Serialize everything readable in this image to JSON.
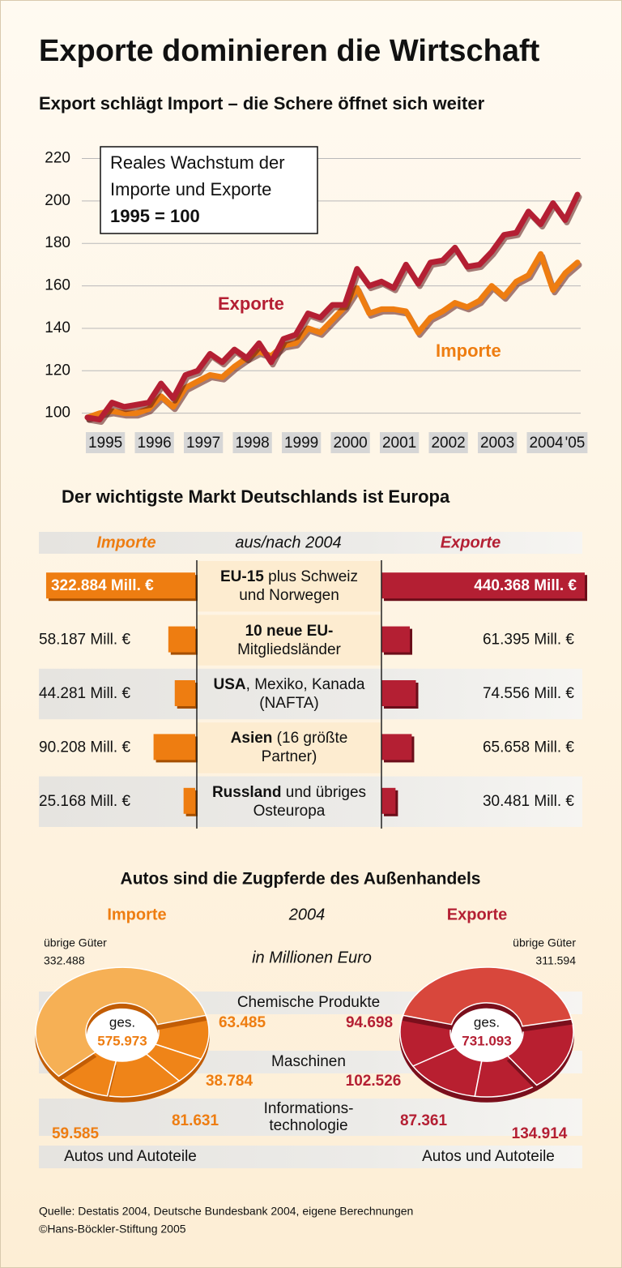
{
  "title": "Exporte dominieren die Wirtschaft",
  "source": [
    "Quelle: Destatis 2004, Deutsche Bundesbank 2004, eigene Berechnungen",
    "©Hans-Böckler-Stiftung 2005"
  ],
  "chart_data": [
    {
      "type": "line",
      "title": "Export schlägt Import – die Schere öffnet sich weiter",
      "annotation": [
        "Reales Wachstum der",
        "Importe und Exporte",
        "1995 = 100"
      ],
      "categories": [
        null,
        "1995",
        null,
        null,
        null,
        "1996",
        null,
        null,
        null,
        "1997",
        null,
        null,
        null,
        "1998",
        null,
        null,
        null,
        "1999",
        null,
        null,
        null,
        "2000",
        null,
        null,
        null,
        "2001",
        null,
        null,
        null,
        "2002",
        null,
        null,
        null,
        "2003",
        null,
        null,
        null,
        "2004",
        null,
        null,
        "'05"
      ],
      "series": [
        {
          "name": "Exporte",
          "color": "#b41f33",
          "values": [
            98,
            97,
            105,
            103,
            104,
            105,
            114,
            107,
            118,
            120,
            128,
            124,
            130,
            126,
            133,
            124,
            135,
            137,
            147,
            145,
            151,
            151,
            168,
            160,
            162,
            159,
            170,
            161,
            171,
            172,
            178,
            169,
            170,
            176,
            184,
            185,
            195,
            189,
            199,
            191,
            203
          ]
        },
        {
          "name": "Importe",
          "color": "#ee7d11",
          "values": [
            98,
            100,
            101,
            100,
            100,
            102,
            108,
            103,
            112,
            115,
            118,
            117,
            122,
            126,
            129,
            127,
            132,
            133,
            140,
            138,
            144,
            150,
            159,
            147,
            149,
            149,
            148,
            138,
            145,
            148,
            152,
            150,
            153,
            160,
            155,
            162,
            165,
            175,
            158,
            166,
            171
          ]
        }
      ],
      "ylim": [
        93,
        224
      ],
      "yticks": [
        100,
        120,
        140,
        160,
        180,
        200,
        220
      ],
      "grid": true
    },
    {
      "type": "bar",
      "title": "Der wichtigste Markt Deutschlands ist Europa",
      "header": "aus/nach 2004",
      "categories": [
        {
          "bold": "EU-15",
          "text": " plus Schweiz und Norwegen"
        },
        {
          "bold": "10 neue EU-",
          "text": "Mitgliedsländer"
        },
        {
          "bold": "USA",
          "text": ", Mexiko, Kanada (NAFTA)"
        },
        {
          "bold": "Asien",
          "text": " (16 größte Partner)"
        },
        {
          "bold": "Russland",
          "text": " und übriges Osteuropa"
        }
      ],
      "series": [
        {
          "name": "Importe",
          "color": "#ee7d11",
          "values": [
            322884,
            58187,
            44281,
            90208,
            25168
          ],
          "value_labels": [
            "322.884 Mill. €",
            "58.187 Mill. €",
            "44.281 Mill. €",
            "90.208 Mill. €",
            "25.168 Mill. €"
          ]
        },
        {
          "name": "Exporte",
          "color": "#b41f33",
          "values": [
            440368,
            61395,
            74556,
            65658,
            30481
          ],
          "value_labels": [
            "440.368 Mill. €",
            "61.395 Mill. €",
            "74.556 Mill. €",
            "65.658 Mill. €",
            "30.481 Mill. €"
          ]
        }
      ]
    },
    {
      "type": "pie",
      "title": "Autos sind die Zugpferde des Außenhandels",
      "subtitle": "2004",
      "unit": "in Millionen Euro",
      "total_label": "ges.",
      "categories": [
        "übrige Güter",
        "Chemische Produkte",
        "Maschinen",
        "Informations-technologie",
        "Autos und Autoteile"
      ],
      "series": [
        {
          "name": "Importe",
          "color": "#ee7d11",
          "colors": [
            "#f6b055",
            "#ef8418",
            "#ef8418",
            "#ef8418",
            "#ef8418"
          ],
          "values": [
            332488,
            63485,
            38784,
            81631,
            59585
          ],
          "value_labels": [
            "332.488",
            "63.485",
            "38.784",
            "81.631",
            "59.585"
          ],
          "total": "575.973"
        },
        {
          "name": "Exporte",
          "color": "#b41f33",
          "colors": [
            "#d8473c",
            "#b81f30",
            "#b81f30",
            "#b81f30",
            "#b81f30"
          ],
          "values": [
            311594,
            94698,
            102526,
            87361,
            134914
          ],
          "value_labels": [
            "311.594",
            "94.698",
            "102.526",
            "87.361",
            "134.914"
          ],
          "total": "731.093"
        }
      ]
    }
  ]
}
